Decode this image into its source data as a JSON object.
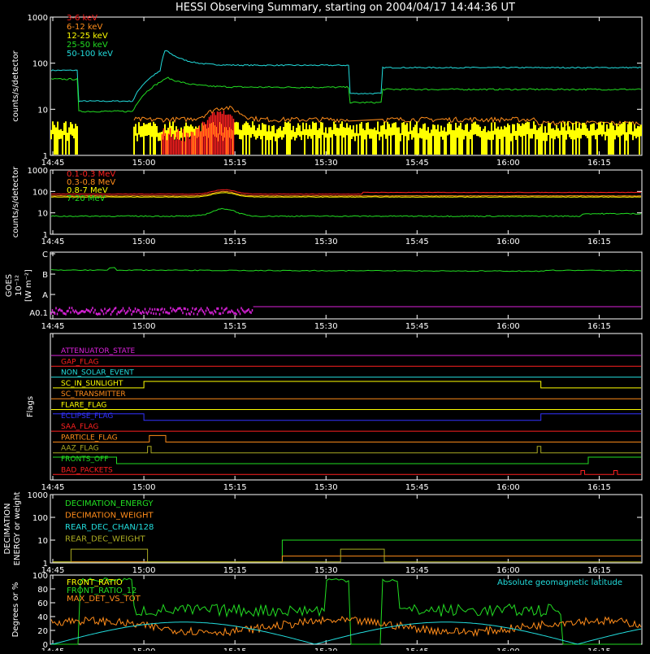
{
  "title": "HESSI Observing Summary, starting on 2004/04/17 14:44:36 UT",
  "time_ticks": [
    "14:45",
    "15:00",
    "15:15",
    "15:30",
    "15:45",
    "16:00",
    "16:15"
  ],
  "chart_data": [
    {
      "type": "line",
      "panel": "hxr",
      "ylabel": "counts/s/detector",
      "ylim": [
        1,
        1000
      ],
      "yscale": "log",
      "yticks": [
        "1",
        "10",
        "100",
        "1000"
      ],
      "series": [
        {
          "name": "3-6 keV",
          "color": "#ff2020"
        },
        {
          "name": "6-12 keV",
          "color": "#ff8c1a"
        },
        {
          "name": "12-25 keV",
          "color": "#ffff00"
        },
        {
          "name": "25-50 keV",
          "color": "#22dd22"
        },
        {
          "name": "50-100 keV",
          "color": "#22dddd"
        }
      ]
    },
    {
      "type": "line",
      "panel": "gamma",
      "ylabel": "counts/s/detector",
      "ylim": [
        1,
        1000
      ],
      "yscale": "log",
      "yticks": [
        "1",
        "10",
        "100",
        "1000"
      ],
      "series": [
        {
          "name": "0.1-0.3 MeV",
          "color": "#ff2020"
        },
        {
          "name": "0.3-0.8 MeV",
          "color": "#ff8c1a"
        },
        {
          "name": "0.8-7 MeV",
          "color": "#ffff00"
        },
        {
          "name": "7-20 MeV",
          "color": "#22dd22"
        }
      ]
    },
    {
      "type": "line",
      "panel": "goes",
      "ylabel": "GOES",
      "ylabel2": "[W m⁻²]",
      "ylabel_exp": "10⁻¹²",
      "yticks": [
        "A0.1",
        "A",
        "B",
        "C"
      ]
    },
    {
      "type": "line",
      "panel": "flags",
      "ylabel": "Flags",
      "flags": [
        {
          "name": "ATTENUATOR_STATE",
          "color": "#dd22dd"
        },
        {
          "name": "GAP_FLAG",
          "color": "#ff2020"
        },
        {
          "name": "NON_SOLAR_EVENT",
          "color": "#22dddd"
        },
        {
          "name": "SC_IN_SUNLIGHT",
          "color": "#ffff00"
        },
        {
          "name": "SC_TRANSMITTER",
          "color": "#ff8c1a"
        },
        {
          "name": "FLARE_FLAG",
          "color": "#ffff00"
        },
        {
          "name": "ECLIPSE_FLAG",
          "color": "#3333ff"
        },
        {
          "name": "SAA_FLAG",
          "color": "#ff2020"
        },
        {
          "name": "PARTICLE_FLAG",
          "color": "#ff8c1a"
        },
        {
          "name": "AAZ_FLAG",
          "color": "#aaaa22"
        },
        {
          "name": "FRONTS_OFF",
          "color": "#22dd22"
        },
        {
          "name": "BAD_PACKETS",
          "color": "#ff2020"
        }
      ]
    },
    {
      "type": "line",
      "panel": "decimation",
      "ylabel": "DECIMATION",
      "ylabel2": "ENERGY or weight",
      "ylim": [
        1,
        1000
      ],
      "yscale": "log",
      "yticks": [
        "1",
        "10",
        "100",
        "1000"
      ],
      "series": [
        {
          "name": "DECIMATION_ENERGY",
          "color": "#22dd22"
        },
        {
          "name": "DECIMATION_WEIGHT",
          "color": "#ff8c1a"
        },
        {
          "name": "REAR_DEC_CHAN/128",
          "color": "#22dddd"
        },
        {
          "name": "REAR_DEC_WEIGHT",
          "color": "#aaaa22"
        }
      ]
    },
    {
      "type": "line",
      "panel": "ratio",
      "ylabel": "Degrees or %",
      "ylim": [
        0,
        100
      ],
      "yticks": [
        "0",
        "20",
        "40",
        "60",
        "80",
        "100"
      ],
      "annotation": "Absolute geomagnetic latitude",
      "series": [
        {
          "name": "FRONT_RATIO",
          "color": "#ffff00"
        },
        {
          "name": "FRONT_RATIO_12",
          "color": "#22dd22"
        },
        {
          "name": "MAX_DET_VS_TOT",
          "color": "#ff8c1a"
        }
      ]
    }
  ]
}
